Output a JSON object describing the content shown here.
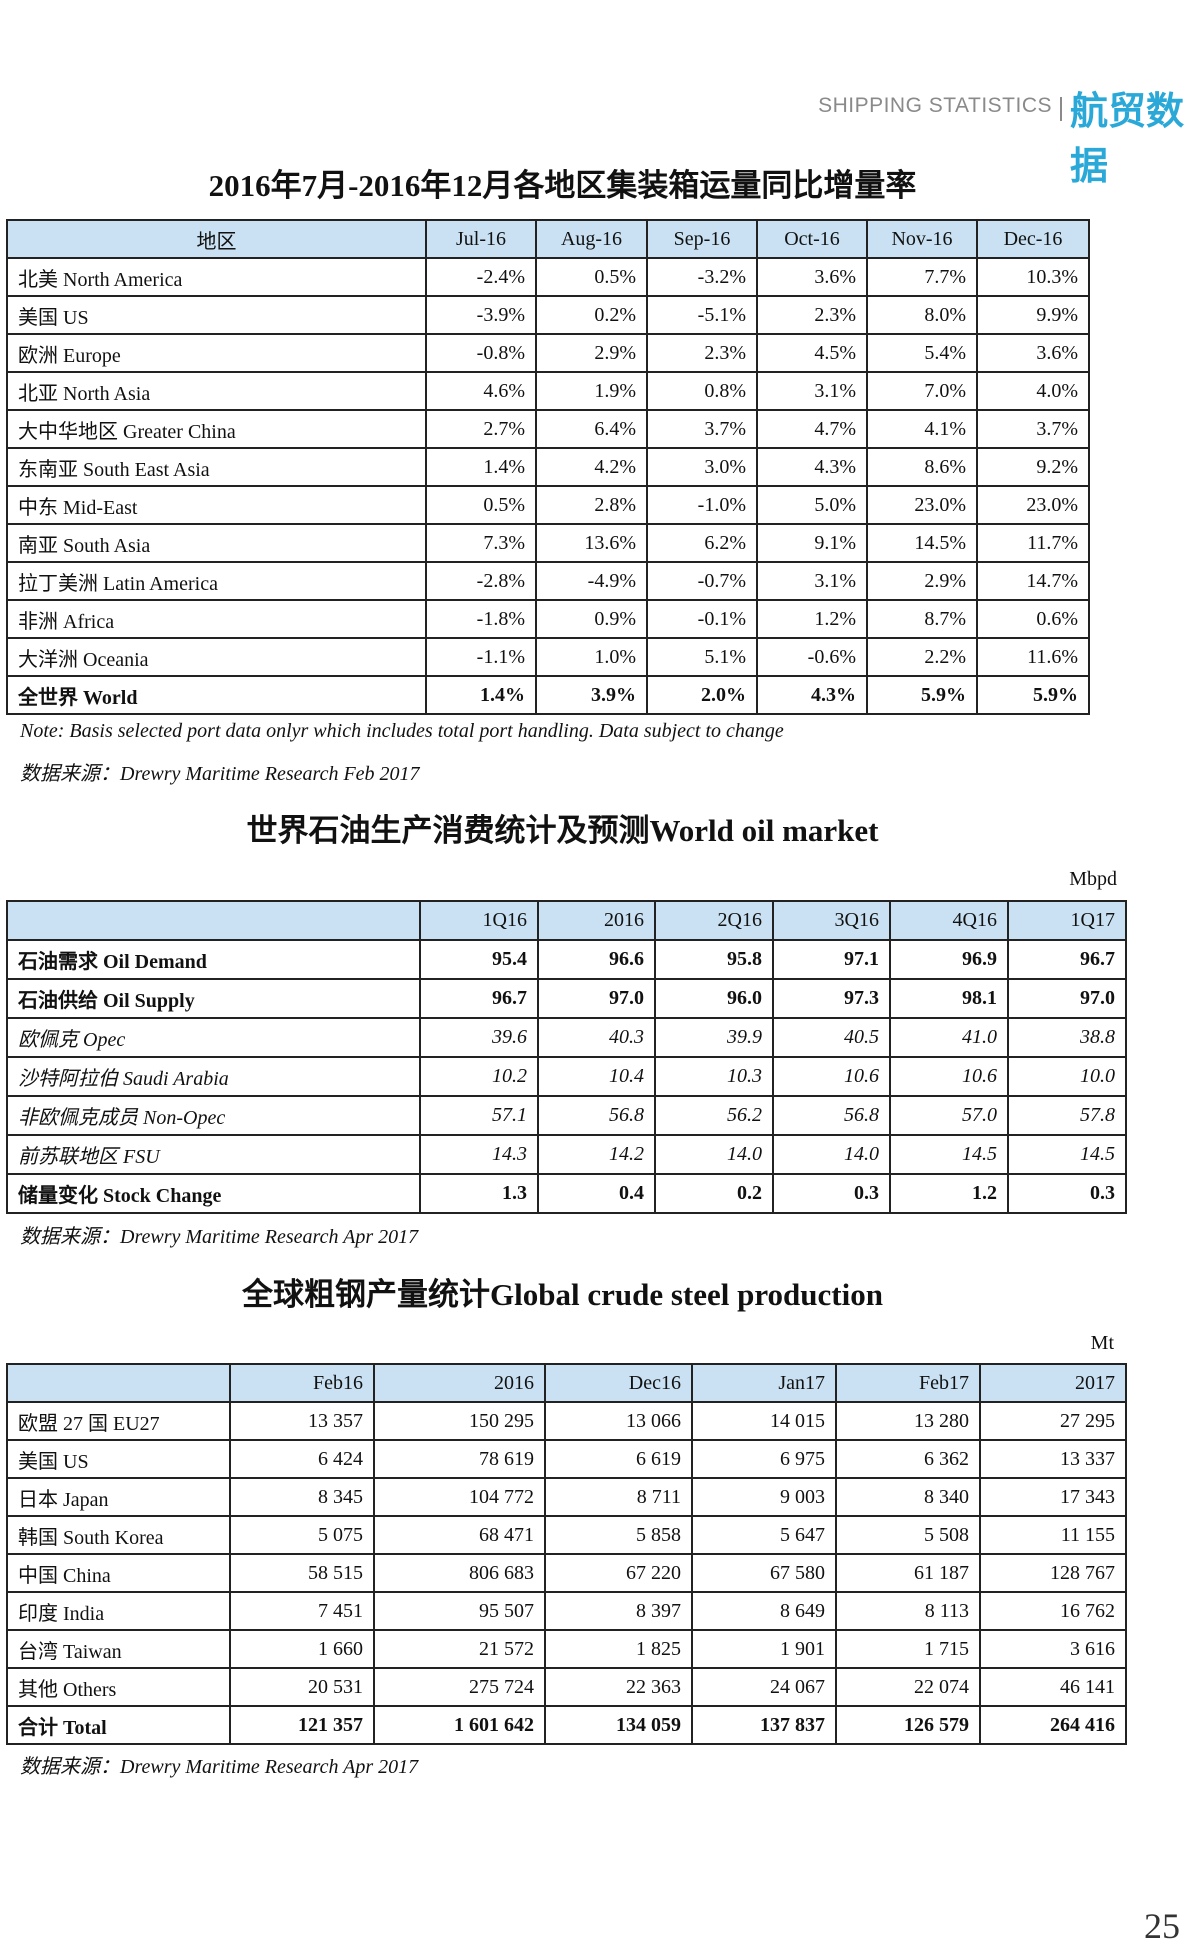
{
  "header": {
    "left": "SHIPPING STATISTICS",
    "right": "航贸数据"
  },
  "container_table": {
    "title": "2016年7月-2016年12月各地区集装箱运量同比增量率",
    "columns": [
      "地区",
      "Jul-16",
      "Aug-16",
      "Sep-16",
      "Oct-16",
      "Nov-16",
      "Dec-16"
    ],
    "rows": [
      [
        "北美 North America",
        "-2.4%",
        "0.5%",
        "-3.2%",
        "3.6%",
        "7.7%",
        "10.3%"
      ],
      [
        "美国 US",
        "-3.9%",
        "0.2%",
        "-5.1%",
        "2.3%",
        "8.0%",
        "9.9%"
      ],
      [
        "欧洲 Europe",
        "-0.8%",
        "2.9%",
        "2.3%",
        "4.5%",
        "5.4%",
        "3.6%"
      ],
      [
        "北亚 North Asia",
        "4.6%",
        "1.9%",
        "0.8%",
        "3.1%",
        "7.0%",
        "4.0%"
      ],
      [
        "大中华地区 Greater China",
        "2.7%",
        "6.4%",
        "3.7%",
        "4.7%",
        "4.1%",
        "3.7%"
      ],
      [
        "东南亚 South East Asia",
        "1.4%",
        "4.2%",
        "3.0%",
        "4.3%",
        "8.6%",
        "9.2%"
      ],
      [
        "中东 Mid-East",
        "0.5%",
        "2.8%",
        "-1.0%",
        "5.0%",
        "23.0%",
        "23.0%"
      ],
      [
        "南亚 South Asia",
        "7.3%",
        "13.6%",
        "6.2%",
        "9.1%",
        "14.5%",
        "11.7%"
      ],
      [
        "拉丁美洲 Latin America",
        "-2.8%",
        "-4.9%",
        "-0.7%",
        "3.1%",
        "2.9%",
        "14.7%"
      ],
      [
        "非洲 Africa",
        "-1.8%",
        "0.9%",
        "-0.1%",
        "1.2%",
        "8.7%",
        "0.6%"
      ],
      [
        "大洋洲 Oceania",
        "-1.1%",
        "1.0%",
        "5.1%",
        "-0.6%",
        "2.2%",
        "11.6%"
      ],
      [
        "全世界 World",
        "1.4%",
        "3.9%",
        "2.0%",
        "4.3%",
        "5.9%",
        "5.9%"
      ]
    ],
    "note": "Note: Basis selected port data onlyr which includes total port handling. Data subject to change",
    "source": "数据来源：Drewry Maritime Research Feb 2017"
  },
  "oil_table": {
    "title": "世界石油生产消费统计及预测World oil market",
    "unit": "Mbpd",
    "columns": [
      "1Q16",
      "2016",
      "2Q16",
      "3Q16",
      "4Q16",
      "1Q17"
    ],
    "rows": [
      [
        "石油需求 Oil Demand",
        "95.4",
        "96.6",
        "95.8",
        "97.1",
        "96.9",
        "96.7"
      ],
      [
        "石油供给 Oil  Supply",
        "96.7",
        "97.0",
        "96.0",
        "97.3",
        "98.1",
        "97.0"
      ],
      [
        "欧佩克 Opec",
        "39.6",
        "40.3",
        "39.9",
        "40.5",
        "41.0",
        "38.8"
      ],
      [
        "沙特阿拉伯 Saudi Arabia",
        "10.2",
        "10.4",
        "10.3",
        "10.6",
        "10.6",
        "10.0"
      ],
      [
        "非欧佩克成员 Non-Opec",
        "57.1",
        "56.8",
        "56.2",
        "56.8",
        "57.0",
        "57.8"
      ],
      [
        "前苏联地区 FSU",
        "14.3",
        "14.2",
        "14.0",
        "14.0",
        "14.5",
        "14.5"
      ],
      [
        "储量变化 Stock Change",
        "1.3",
        "0.4",
        "0.2",
        "0.3",
        "1.2",
        "0.3"
      ]
    ],
    "source": "数据来源：Drewry Maritime Research Apr 2017"
  },
  "steel_table": {
    "title": "全球粗钢产量统计Global crude steel production",
    "unit": "Mt",
    "columns": [
      "Feb16",
      "2016",
      "Dec16",
      "Jan17",
      "Feb17",
      "2017"
    ],
    "rows": [
      [
        "欧盟 27 国 EU27",
        "13 357",
        "150 295",
        "13 066",
        "14 015",
        "13 280",
        "27  295"
      ],
      [
        "美国 US",
        "6 424",
        "78 619",
        "6 619",
        "6 975",
        "6 362",
        "13 337"
      ],
      [
        "日本 Japan",
        "8 345",
        "104 772",
        "8 711",
        "9 003",
        "8 340",
        "17 343"
      ],
      [
        "韩国 South Korea",
        "5 075",
        "68 471",
        "5 858",
        "5 647",
        "5 508",
        "11 155"
      ],
      [
        "中国 China",
        "58 515",
        "806 683",
        "67 220",
        "67 580",
        "61 187",
        "128 767"
      ],
      [
        "印度 India",
        "7 451",
        "95 507",
        "8 397",
        "8 649",
        "8 113",
        "16 762"
      ],
      [
        "台湾 Taiwan",
        "1 660",
        "21 572",
        "1 825",
        "1 901",
        "1 715",
        "3 616"
      ],
      [
        "其他 Others",
        "20 531",
        "275 724",
        "22 363",
        "24 067",
        "22 074",
        "46 141"
      ],
      [
        "合计 Total",
        "121 357",
        "1 601 642",
        "134 059",
        "137 837",
        "126 579",
        "264 416"
      ]
    ],
    "source": "数据来源：Drewry Maritime Research Apr 2017"
  },
  "page_number": "25"
}
